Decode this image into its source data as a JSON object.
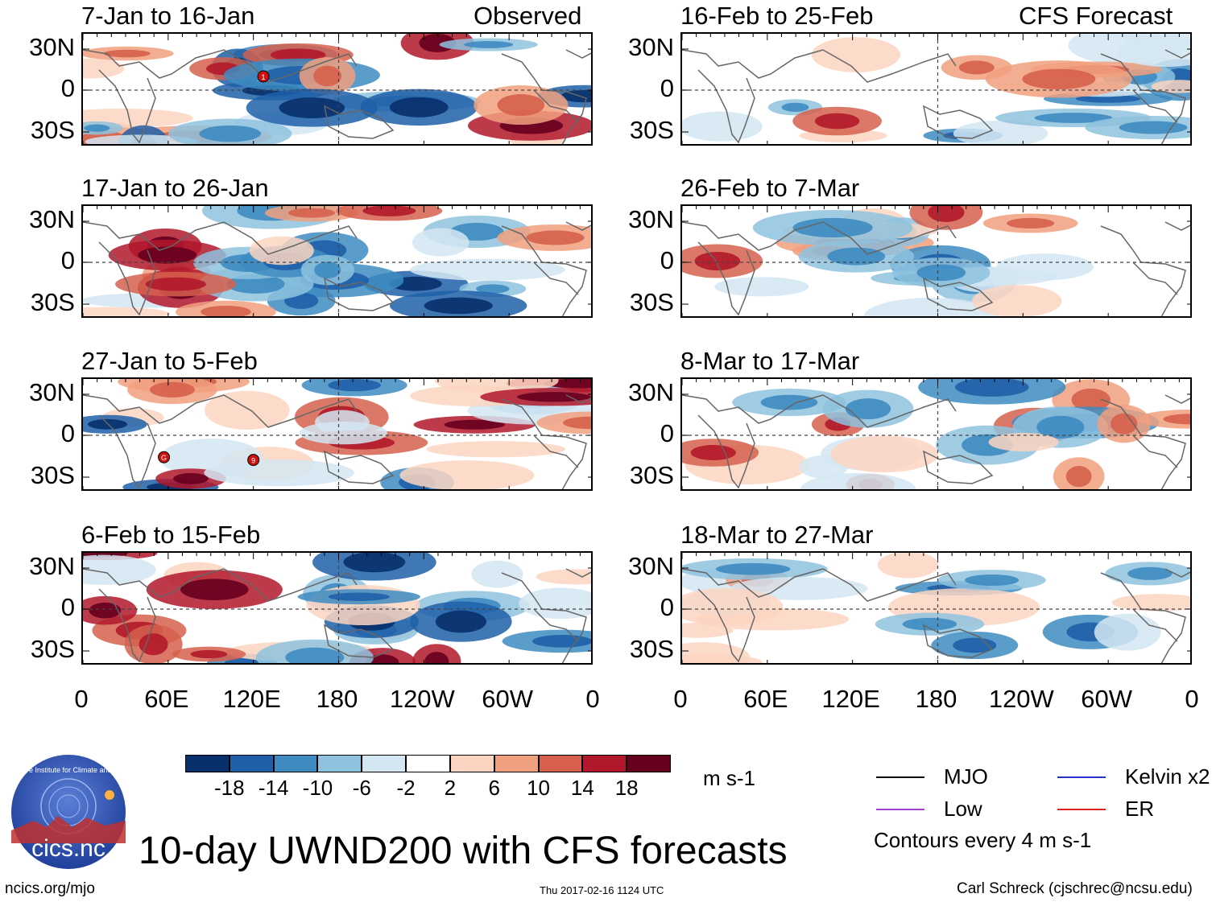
{
  "chart_data": {
    "type": "heatmap",
    "title": "10-day UWND200 with CFS forecasts",
    "variable": "UWND200",
    "units": "m s-1",
    "observed_label": "Observed",
    "forecast_label": "CFS Forecast",
    "longitude_ticks": [
      "0",
      "60E",
      "120E",
      "180",
      "120W",
      "60W",
      "0"
    ],
    "latitude_ticks": [
      "30N",
      "0",
      "30S"
    ],
    "panels": [
      {
        "title": "7-Jan to 16-Jan",
        "source": "Observed",
        "column": 0,
        "row": 0,
        "cyclones": [
          {
            "label": "1",
            "lon": 127,
            "lat": 10
          }
        ]
      },
      {
        "title": "17-Jan to 26-Jan",
        "source": "Observed",
        "column": 0,
        "row": 1,
        "cyclones": []
      },
      {
        "title": "27-Jan to 5-Feb",
        "source": "Observed",
        "column": 0,
        "row": 2,
        "cyclones": [
          {
            "label": "G",
            "lon": 57,
            "lat": -16
          },
          {
            "label": "9",
            "lon": 120,
            "lat": -18
          }
        ]
      },
      {
        "title": "6-Feb to 15-Feb",
        "source": "Observed",
        "column": 0,
        "row": 3,
        "cyclones": []
      },
      {
        "title": "16-Feb to 25-Feb",
        "source": "CFS Forecast",
        "column": 1,
        "row": 0,
        "cyclones": []
      },
      {
        "title": "26-Feb to 7-Mar",
        "source": "CFS Forecast",
        "column": 1,
        "row": 1,
        "cyclones": []
      },
      {
        "title": "8-Mar to 17-Mar",
        "source": "CFS Forecast",
        "column": 1,
        "row": 2,
        "cyclones": []
      },
      {
        "title": "18-Mar to 27-Mar",
        "source": "CFS Forecast",
        "column": 1,
        "row": 3,
        "cyclones": []
      }
    ],
    "colorbar": {
      "levels": [
        "-18",
        "-14",
        "-10",
        "-6",
        "-2",
        "2",
        "6",
        "10",
        "14",
        "18"
      ],
      "colors": [
        "#08306b",
        "#1f5fa8",
        "#3d8bc1",
        "#8ec2de",
        "#d4e6f2",
        "#ffffff",
        "#fbd5c1",
        "#f1a07f",
        "#d6604d",
        "#b2182b",
        "#67001f"
      ]
    },
    "legend": [
      {
        "label": "MJO",
        "color": "#000000"
      },
      {
        "label": "Kelvin x2",
        "color": "#2233cc"
      },
      {
        "label": "Low",
        "color": "#a040d0"
      },
      {
        "label": "ER",
        "color": "#dd2222"
      }
    ],
    "contour_note": "Contours every 4 m s-1"
  },
  "footer": {
    "logo_text": "cics.nc",
    "logo_ring_text": "Cooperative Institute for Climate and Satellites",
    "left": "ncics.org/mjo",
    "center": "Thu 2017-02-16 1124 UTC",
    "right": "Carl Schreck (cjschrec@ncsu.edu)"
  }
}
